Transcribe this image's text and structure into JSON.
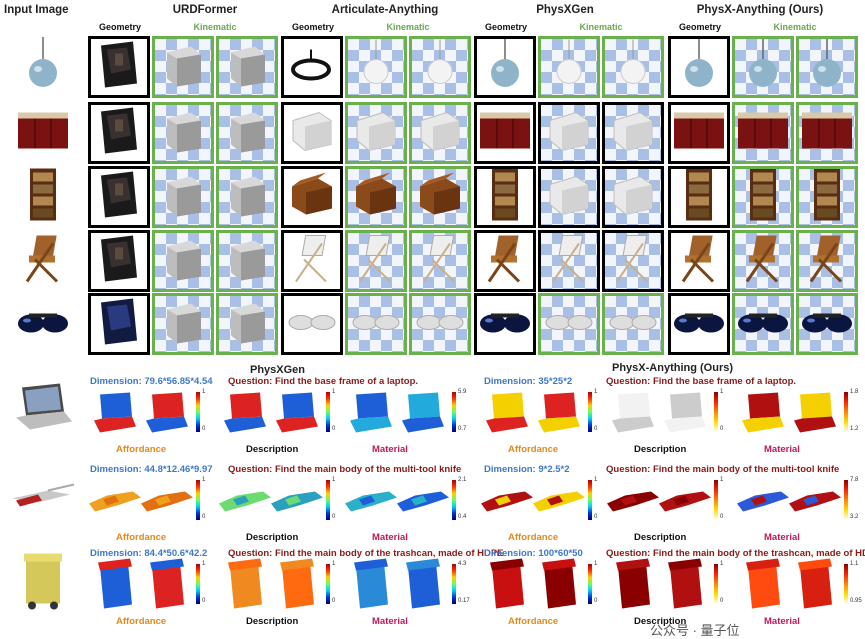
{
  "grid": {
    "input_label": "Input Image",
    "methods": [
      {
        "name": "URDFormer",
        "geo": "Geometry",
        "kin": "Kinematic"
      },
      {
        "name": "Articulate-Anything",
        "geo": "Geometry",
        "kin": "Kinematic"
      },
      {
        "name": "PhysXGen",
        "geo": "Geometry",
        "kin": "Kinematic"
      },
      {
        "name": "PhysX-Anything (Ours)",
        "geo": "Geometry",
        "kin": "Kinematic"
      }
    ],
    "rows": [
      "lamp",
      "cabinet",
      "bookshelf",
      "chair",
      "sunglasses"
    ]
  },
  "bottom": {
    "left_title": "PhysXGen",
    "right_title": "PhysX-Anything (Ours)",
    "rows": [
      {
        "object": "laptop",
        "left_dim": "Dimension: 79.6*56.85*4.54",
        "left_q": "Question: Find the base frame of a laptop.",
        "right_dim": "Dimension: 35*25*2",
        "right_q": "Question: Find the base frame of a laptop.",
        "left_ticks": [
          [
            "1",
            "0"
          ],
          [
            "1",
            "0"
          ],
          [
            "5.9",
            "0.7"
          ]
        ],
        "right_ticks": [
          [
            "1",
            "0"
          ],
          [
            "1",
            "0"
          ],
          [
            "1.8",
            "1.2"
          ]
        ]
      },
      {
        "object": "multi-tool knife",
        "left_dim": "Dimension: 44.8*12.46*9.97",
        "left_q": "Question: Find the main body of the multi-tool knife",
        "right_dim": "Dimension: 9*2.5*2",
        "right_q": "Question: Find the main body of the multi-tool knife",
        "left_ticks": [
          [
            "1",
            "0"
          ],
          [
            "1",
            "0"
          ],
          [
            "2.1",
            "0.4"
          ]
        ],
        "right_ticks": [
          [
            "1",
            "0"
          ],
          [
            "1",
            "0"
          ],
          [
            "7.8",
            "3.2"
          ]
        ]
      },
      {
        "object": "trashcan",
        "left_dim": "Dimension: 84.4*50.6*42.2",
        "left_q": "Question: Find the main body of the trashcan, made of HDPE",
        "right_dim": "Dimension: 100*60*50",
        "right_q": "Question: Find the main body of the trashcan, made of HDPE",
        "left_ticks": [
          [
            "1",
            "0"
          ],
          [
            "1",
            "0"
          ],
          [
            "4.3",
            "0.17"
          ]
        ],
        "right_ticks": [
          [
            "1",
            "0"
          ],
          [
            "1",
            "0"
          ],
          [
            "1.1",
            "0.95"
          ]
        ]
      }
    ],
    "labels": {
      "aff": "Affordance",
      "desc": "Description",
      "mat": "Material"
    }
  },
  "watermark": "公众号 · 量子位",
  "colors": {
    "green_border": "#6ab04c",
    "kin_text": "#6aa84f",
    "dim_blue": "#3d78c9",
    "question_red": "#8b1a1a",
    "affordance_orange": "#e08a1e",
    "material_pink": "#c2185b"
  }
}
